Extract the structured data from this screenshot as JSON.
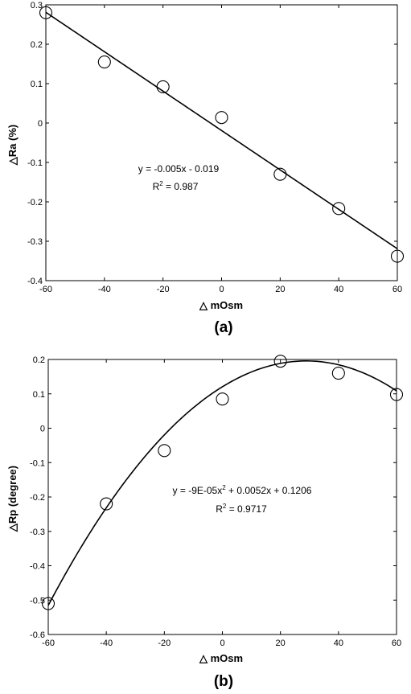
{
  "chart_data": [
    {
      "type": "scatter",
      "panel_label": "(a)",
      "xlabel": "△ mOsm",
      "ylabel": "△Ra (%)",
      "xlim": [
        -60,
        60
      ],
      "ylim": [
        -0.4,
        0.3
      ],
      "xticks": [
        "-60",
        "-40",
        "-20",
        "0",
        "20",
        "40",
        "60"
      ],
      "yticks": [
        "0.3",
        "0.2",
        "0.1",
        "0",
        "-0.1",
        "-0.2",
        "-0.3",
        "-0.4"
      ],
      "grid": false,
      "series": [
        {
          "x": [
            -60,
            -40,
            -20,
            0,
            20,
            40,
            60
          ],
          "y": [
            0.28,
            0.155,
            0.092,
            0.014,
            -0.13,
            -0.217,
            -0.338
          ]
        }
      ],
      "fit": {
        "kind": "linear",
        "coefficients": [
          -0.005,
          -0.019
        ]
      },
      "equation": "y = -0.005x - 0.019",
      "r2_label": "R",
      "r2_exp": "2",
      "r2_value": " = 0.987"
    },
    {
      "type": "scatter",
      "panel_label": "(b)",
      "xlabel": "△ mOsm",
      "ylabel": "△Rp (degree)",
      "xlim": [
        -60,
        60
      ],
      "ylim": [
        -0.6,
        0.2
      ],
      "xticks": [
        "-60",
        "-40",
        "-20",
        "0",
        "20",
        "40",
        "60"
      ],
      "yticks": [
        "0.2",
        "0.1",
        "0",
        "-0.1",
        "-0.2",
        "-0.3",
        "-0.4",
        "-0.5",
        "-0.6"
      ],
      "grid": false,
      "series": [
        {
          "x": [
            -60,
            -40,
            -20,
            0,
            20,
            40,
            60
          ],
          "y": [
            -0.51,
            -0.22,
            -0.065,
            0.085,
            0.195,
            0.16,
            0.098
          ]
        }
      ],
      "fit": {
        "kind": "quadratic",
        "coefficients": [
          -9e-05,
          0.0052,
          0.1206
        ]
      },
      "equation_pre": "y = -9E-05x",
      "equation_exp": "2",
      "equation_post": " + 0.0052x + 0.1206",
      "r2_label": "R",
      "r2_exp": "2",
      "r2_value": " = 0.9717"
    }
  ]
}
